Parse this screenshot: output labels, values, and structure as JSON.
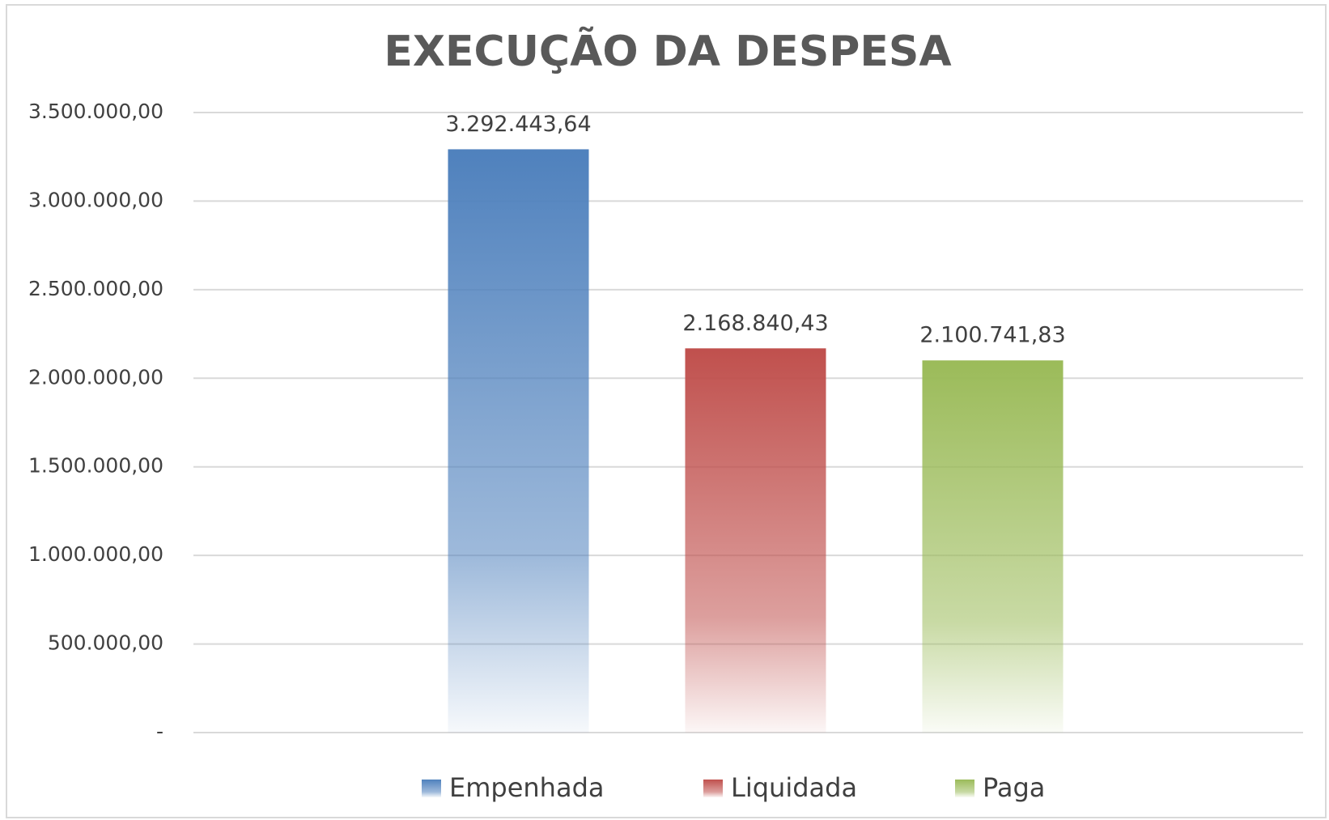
{
  "chart_data": {
    "type": "bar",
    "title": "EXECUÇÃO DA DESPESA",
    "categories": [
      null
    ],
    "series": [
      {
        "name": "Empenhada",
        "color": "#4f81bd",
        "values": [
          3292443.64
        ],
        "value_labels": [
          "3.292.443,64"
        ]
      },
      {
        "name": "Liquidada",
        "color": "#c0504d",
        "values": [
          2168840.43
        ],
        "value_labels": [
          "2.168.840,43"
        ]
      },
      {
        "name": "Paga",
        "color": "#9bbb59",
        "values": [
          2100741.83
        ],
        "value_labels": [
          "2.100.741,83"
        ]
      }
    ],
    "ylim": [
      0,
      3500000
    ],
    "yticks": [
      {
        "value": 0,
        "label": "-"
      },
      {
        "value": 500000,
        "label": "500.000,00"
      },
      {
        "value": 1000000,
        "label": "1.000.000,00"
      },
      {
        "value": 1500000,
        "label": "1.500.000,00"
      },
      {
        "value": 2000000,
        "label": "2.000.000,00"
      },
      {
        "value": 2500000,
        "label": "2.500.000,00"
      },
      {
        "value": 3000000,
        "label": "3.000.000,00"
      },
      {
        "value": 3500000,
        "label": "3.500.000,00"
      }
    ],
    "grid": true,
    "legend": "bottom"
  }
}
